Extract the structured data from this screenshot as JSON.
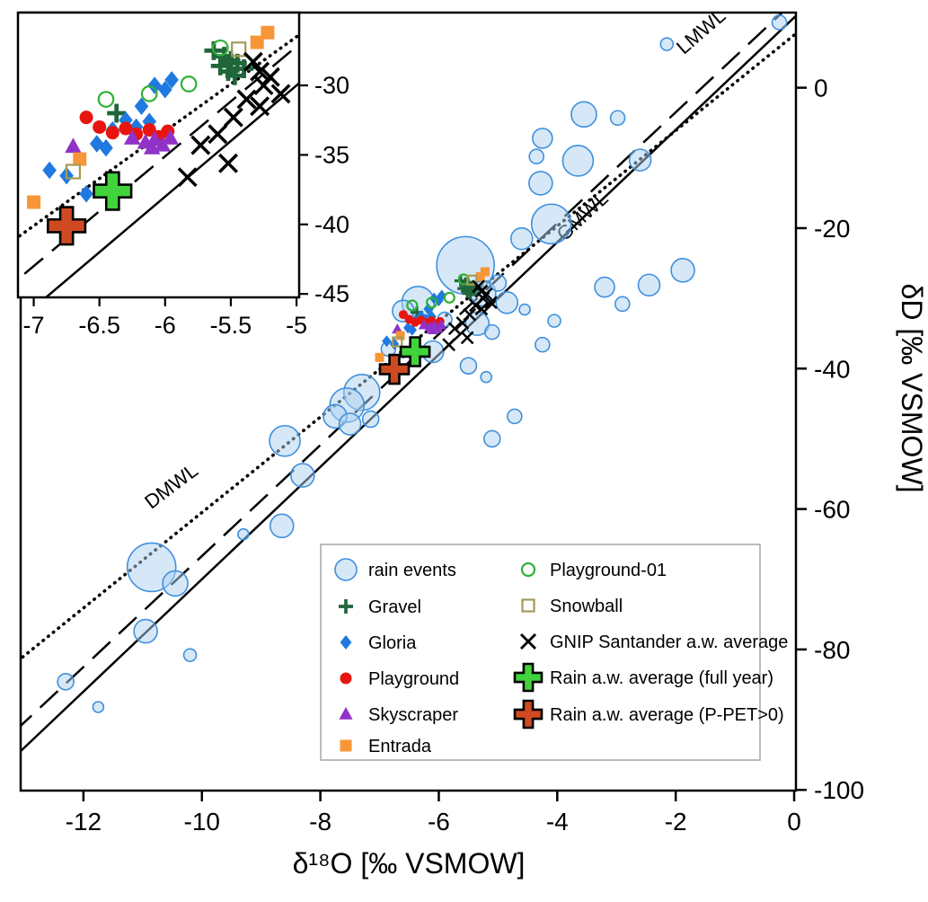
{
  "figure": {
    "background": "#ffffff"
  },
  "chart_data": {
    "type": "scatter",
    "title": "",
    "xlabel": "δ¹⁸O [‰ VSMOW]",
    "ylabel": "δD [‰ VSMOW]",
    "xlim": [
      -13.06,
      0.03
    ],
    "ylim": [
      -100.1,
      10.7
    ],
    "x_ticks": [
      -12,
      -10,
      -8,
      -6,
      -4,
      -2,
      0
    ],
    "y_ticks": [
      0,
      -20,
      -40,
      -60,
      -80,
      -100
    ],
    "grid": false,
    "legend_position": "lower-right-inside",
    "lines": [
      {
        "name": "GMWL",
        "style": "solid",
        "slope": 8.0,
        "intercept": 10.0
      },
      {
        "name": "LMWL",
        "style": "long-dash",
        "slope": 7.9,
        "intercept": 12.3
      },
      {
        "name": "DMWL",
        "style": "dotted",
        "slope": 6.8,
        "intercept": 7.5
      }
    ],
    "line_labels": [
      {
        "text": "LMWL",
        "x": -1.5,
        "y": 7.3,
        "rotation": -41
      },
      {
        "text": "GMWL",
        "x": -3.5,
        "y": -19.0,
        "rotation": -43
      },
      {
        "text": "DMWL",
        "x": -10.45,
        "y": -57.5,
        "rotation": -37
      }
    ],
    "series": [
      {
        "key": "rain_events",
        "name": "rain events",
        "marker": "bubble",
        "color": "#add2f0",
        "stroke": "#4090dd",
        "points": [
          [
            -0.25,
            9.3,
            8
          ],
          [
            -2.15,
            6.2,
            7
          ],
          [
            -3.55,
            -3.8,
            14
          ],
          [
            -2.98,
            -4.3,
            8
          ],
          [
            -4.25,
            -7.2,
            11
          ],
          [
            -4.35,
            -9.8,
            8
          ],
          [
            -3.65,
            -10.4,
            17
          ],
          [
            -2.6,
            -10.3,
            12
          ],
          [
            -4.28,
            -13.6,
            13
          ],
          [
            -4.1,
            -19.4,
            22
          ],
          [
            -4.6,
            -21.5,
            12
          ],
          [
            -1.88,
            -26,
            13
          ],
          [
            -2.45,
            -28.1,
            12
          ],
          [
            -3.2,
            -28.4,
            11
          ],
          [
            -2.9,
            -30.8,
            8
          ],
          [
            -5.55,
            -25.3,
            32
          ],
          [
            -5.25,
            -29.3,
            14
          ],
          [
            -5,
            -27.8,
            9
          ],
          [
            -4.85,
            -30.6,
            12
          ],
          [
            -6.35,
            -30.6,
            18
          ],
          [
            -6.6,
            -31.8,
            12
          ],
          [
            -5.9,
            -33,
            8
          ],
          [
            -5.35,
            -33.6,
            13
          ],
          [
            -5.1,
            -34.8,
            8
          ],
          [
            -4.55,
            -31.6,
            6
          ],
          [
            -4.05,
            -33.2,
            7
          ],
          [
            -4.25,
            -36.6,
            8
          ],
          [
            -5.5,
            -39.6,
            9
          ],
          [
            -5.2,
            -41.2,
            6
          ],
          [
            -5.1,
            -50,
            9
          ],
          [
            -4.72,
            -46.8,
            8
          ],
          [
            -6.1,
            -37.6,
            12
          ],
          [
            -6.85,
            -37.2,
            8
          ],
          [
            -7.3,
            -43.4,
            20
          ],
          [
            -7.55,
            -45.2,
            19
          ],
          [
            -7.75,
            -46.8,
            13
          ],
          [
            -7.5,
            -47.9,
            12
          ],
          [
            -7.15,
            -47.2,
            9
          ],
          [
            -8.6,
            -50.3,
            17
          ],
          [
            -8.3,
            -55.2,
            13
          ],
          [
            -8.65,
            -62.4,
            13
          ],
          [
            -9.3,
            -63.6,
            6
          ],
          [
            -10.85,
            -68.3,
            27
          ],
          [
            -10.45,
            -70.6,
            14
          ],
          [
            -10.95,
            -77.4,
            13
          ],
          [
            -10.2,
            -80.8,
            7
          ],
          [
            -12.3,
            -84.6,
            9
          ],
          [
            -11.75,
            -88.2,
            6
          ]
        ]
      },
      {
        "key": "gravel",
        "name": "Gravel",
        "marker": "plus",
        "color": "#20663b",
        "points": [
          [
            -6.37,
            -32
          ],
          [
            -5.63,
            -27.5
          ],
          [
            -5.55,
            -27.9
          ],
          [
            -5.5,
            -28.2
          ],
          [
            -5.58,
            -28.6
          ],
          [
            -5.45,
            -28.4
          ],
          [
            -5.4,
            -28.8
          ],
          [
            -5.52,
            -29
          ],
          [
            -5.47,
            -29.3
          ]
        ]
      },
      {
        "key": "gloria",
        "name": "Gloria",
        "marker": "diamond",
        "color": "#2079e0",
        "points": [
          [
            -6.88,
            -36.1
          ],
          [
            -6.75,
            -36.5
          ],
          [
            -6.6,
            -37.8
          ],
          [
            -6.52,
            -34.2
          ],
          [
            -6.45,
            -34.5
          ],
          [
            -6.4,
            -33.2
          ],
          [
            -6.3,
            -32.5
          ],
          [
            -6.22,
            -33
          ],
          [
            -6.12,
            -32.6
          ],
          [
            -6.18,
            -31.5
          ],
          [
            -6.08,
            -30
          ],
          [
            -6,
            -30.3
          ],
          [
            -5.95,
            -29.6
          ]
        ]
      },
      {
        "key": "playground",
        "name": "Playground",
        "marker": "circle",
        "color": "#e8150f",
        "points": [
          [
            -6.6,
            -32.3
          ],
          [
            -6.5,
            -33
          ],
          [
            -6.4,
            -33.4
          ],
          [
            -6.3,
            -33.1
          ],
          [
            -6.22,
            -33.5
          ],
          [
            -6.12,
            -33.2
          ],
          [
            -6.05,
            -33.7
          ],
          [
            -5.98,
            -33.3
          ]
        ]
      },
      {
        "key": "skyscraper",
        "name": "Skyscraper",
        "marker": "triangle",
        "color": "#9032c8",
        "points": [
          [
            -6.7,
            -34.4
          ],
          [
            -6.25,
            -33.8
          ],
          [
            -6.15,
            -34.1
          ],
          [
            -6.08,
            -33.9
          ],
          [
            -6.02,
            -34.3
          ],
          [
            -5.96,
            -33.8
          ],
          [
            -6.1,
            -34.5
          ]
        ]
      },
      {
        "key": "entrada",
        "name": "Entrada",
        "marker": "square",
        "color": "#f79636",
        "points": [
          [
            -7,
            -38.4
          ],
          [
            -6.65,
            -35.3
          ],
          [
            -5.3,
            -26.9
          ],
          [
            -5.22,
            -26.2
          ]
        ]
      },
      {
        "key": "playground01",
        "name": "Playground-01",
        "marker": "open-circle",
        "color": "#2fb135",
        "points": [
          [
            -6.45,
            -31
          ],
          [
            -6.12,
            -30.6
          ],
          [
            -5.82,
            -29.9
          ],
          [
            -5.58,
            -27.3
          ]
        ]
      },
      {
        "key": "snowball",
        "name": "Snowball",
        "marker": "open-square",
        "color": "#a59a55",
        "points": [
          [
            -6.7,
            -36.2
          ],
          [
            -5.44,
            -27.4
          ]
        ]
      },
      {
        "key": "gnip",
        "name": "GNIP Santander a.w. average",
        "marker": "x",
        "color": "#000000",
        "points": [
          [
            -5.33,
            -28.3
          ],
          [
            -5.28,
            -29
          ],
          [
            -5.2,
            -29.4
          ],
          [
            -5.25,
            -30
          ],
          [
            -5.12,
            -30.6
          ],
          [
            -5.38,
            -31
          ],
          [
            -5.28,
            -31.5
          ],
          [
            -5.48,
            -32.3
          ],
          [
            -5.6,
            -33.5
          ],
          [
            -5.73,
            -34.3
          ],
          [
            -5.52,
            -35.6
          ],
          [
            -5.83,
            -36.6
          ]
        ]
      },
      {
        "key": "rain_avg_full_year",
        "name": "Rain a.w. average (full year)",
        "marker": "bold-plus",
        "color": "#41d33c",
        "stroke": "#000000",
        "points": [
          [
            -6.4,
            -37.6
          ]
        ]
      },
      {
        "key": "rain_avg_ppet",
        "name": "Rain a.w. average (P-PET>0)",
        "marker": "bold-plus",
        "color": "#cf4a21",
        "stroke": "#000000",
        "points": [
          [
            -6.75,
            -40.1
          ]
        ]
      }
    ],
    "inset": {
      "xlim": [
        -7.12,
        -4.98
      ],
      "ylim": [
        -45.25,
        -24.76
      ],
      "x_ticks": [
        -7,
        -6.5,
        -6,
        -5.5,
        -5
      ],
      "y_ticks": [
        -30,
        -35,
        -40,
        -45
      ]
    }
  },
  "legend": {
    "items": [
      {
        "label": "rain events",
        "series": "rain_events",
        "col": 0
      },
      {
        "label": "Gravel",
        "series": "gravel",
        "col": 0
      },
      {
        "label": "Gloria",
        "series": "gloria",
        "col": 0
      },
      {
        "label": "Playground",
        "series": "playground",
        "col": 0
      },
      {
        "label": "Skyscraper",
        "series": "skyscraper",
        "col": 0
      },
      {
        "label": "Entrada",
        "series": "entrada",
        "col": 0
      },
      {
        "label": "Playground-01",
        "series": "playground01",
        "col": 1
      },
      {
        "label": "Snowball",
        "series": "snowball",
        "col": 1
      },
      {
        "label": "GNIP Santander a.w. average",
        "series": "gnip",
        "col": 1
      },
      {
        "label": "Rain a.w. average (full year)",
        "series": "rain_avg_full_year",
        "col": 1
      },
      {
        "label": "Rain a.w. average (P-PET>0)",
        "series": "rain_avg_ppet",
        "col": 1
      }
    ]
  }
}
